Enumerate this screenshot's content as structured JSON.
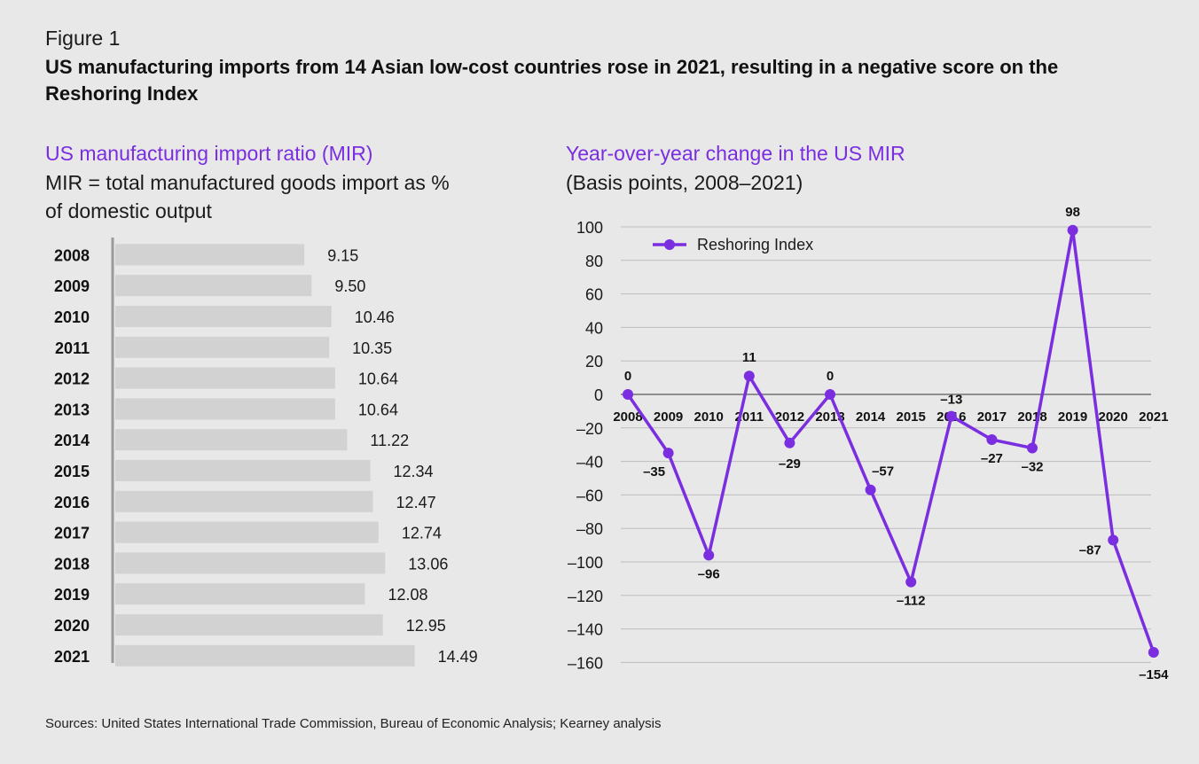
{
  "figure_label": "Figure 1",
  "figure_title": "US manufacturing imports from 14 Asian low-cost countries rose in 2021, resulting in a negative score on the Reshoring Index",
  "source": "Sources: United States International Trade Commission, Bureau of Economic Analysis; Kearney analysis",
  "colors": {
    "background": "#e8e8e8",
    "bar": "#d2d2d2",
    "accent": "#7a2ee0",
    "grid": "#bdbdbd"
  },
  "chart_data": [
    {
      "type": "bar",
      "orientation": "horizontal",
      "title": "US manufacturing import ratio (MIR)",
      "subtitle": "MIR = total manufactured goods import as % of domestic output",
      "categories": [
        "2008",
        "2009",
        "2010",
        "2011",
        "2012",
        "2013",
        "2014",
        "2015",
        "2016",
        "2017",
        "2018",
        "2019",
        "2020",
        "2021"
      ],
      "value_labels": [
        "9.15",
        "9.50",
        "10.46",
        "10.35",
        "10.64",
        "10.64",
        "11.22",
        "12.34",
        "12.47",
        "12.74",
        "13.06",
        "12.08",
        "12.95",
        "14.49"
      ],
      "values": [
        9.15,
        9.5,
        10.46,
        10.35,
        10.64,
        10.64,
        11.22,
        12.34,
        12.47,
        12.74,
        13.06,
        12.08,
        12.95,
        14.49
      ],
      "xlim": [
        0,
        15
      ]
    },
    {
      "type": "line",
      "title": "Year-over-year change in the US MIR",
      "subtitle": "(Basis points, 2008–2021)",
      "legend": "Reshoring Index",
      "legend_position": "top-left",
      "x": [
        "2008",
        "2009",
        "2010",
        "2011",
        "2012",
        "2013",
        "2014",
        "2015",
        "2016",
        "2017",
        "2018",
        "2019",
        "2020",
        "2021"
      ],
      "values": [
        0,
        -35,
        -96,
        11,
        -29,
        0,
        -57,
        -112,
        -13,
        -27,
        -32,
        98,
        -87,
        -154
      ],
      "point_labels": [
        "0",
        "–35",
        "–96",
        "11",
        "–29",
        "0",
        "–57",
        "–112",
        "–13",
        "–27",
        "–32",
        "98",
        "–87",
        "–154"
      ],
      "ylim": [
        -160,
        100
      ],
      "yticks": [
        100,
        80,
        60,
        40,
        20,
        0,
        -20,
        -40,
        -60,
        -80,
        -100,
        -120,
        -140,
        -160
      ],
      "ytick_labels": [
        "100",
        "80",
        "60",
        "40",
        "20",
        "0",
        "–20",
        "–40",
        "–60",
        "–80",
        "–100",
        "–120",
        "–140",
        "–160"
      ],
      "grid": true
    }
  ]
}
